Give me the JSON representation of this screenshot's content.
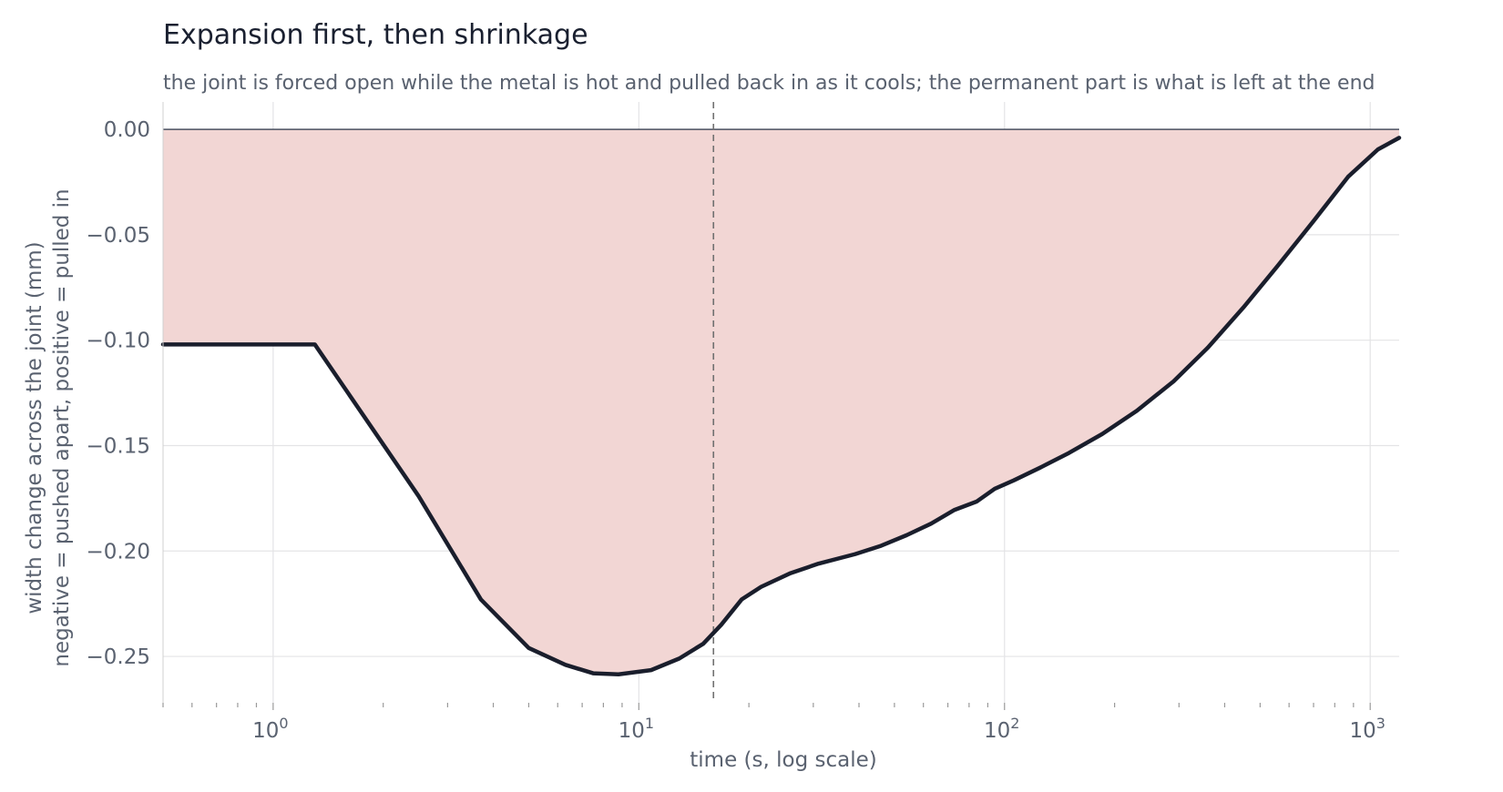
{
  "chart_data": {
    "type": "area",
    "title": "Expansion first, then shrinkage",
    "subtitle": "the joint is forced open while the metal is hot and pulled back in as it cools; the permanent part is what is left at the end",
    "xlabel": "time  (s, log scale)",
    "ylabel_lines": [
      "width change across the joint  (mm)",
      "negative = pushed apart, positive = pulled in"
    ],
    "x_scale": "log",
    "xlim": [
      0.5,
      1200
    ],
    "ylim": [
      -0.272,
      0.013
    ],
    "x_major_ticks": [
      {
        "value": 1,
        "base": "10",
        "exp": "0"
      },
      {
        "value": 10,
        "base": "10",
        "exp": "1"
      },
      {
        "value": 100,
        "base": "10",
        "exp": "2"
      },
      {
        "value": 1000,
        "base": "10",
        "exp": "3"
      }
    ],
    "y_ticks": [
      {
        "value": 0,
        "label": "0.00"
      },
      {
        "value": -0.05,
        "label": "−0.05"
      },
      {
        "value": -0.1,
        "label": "−0.10"
      },
      {
        "value": -0.15,
        "label": "−0.15"
      },
      {
        "value": -0.2,
        "label": "−0.20"
      },
      {
        "value": -0.25,
        "label": "−0.25"
      }
    ],
    "grid": true,
    "vertical_marker_x": 16,
    "series": [
      {
        "x": [
          0.5,
          1.3,
          2.5,
          3.7,
          5.0,
          6.3,
          7.5,
          8.8,
          10.8,
          12.9,
          15.0,
          16.8,
          19.1,
          21.6,
          26.0,
          31.0,
          39.0,
          46.0,
          54.0,
          63.0,
          73.0,
          84.0,
          94.0,
          106.0,
          125.0,
          150.0,
          185.0,
          230.0,
          290.0,
          360.0,
          450.0,
          560.0,
          700.0,
          870.0,
          1050.0,
          1200.0
        ],
        "y": [
          -0.102,
          -0.102,
          -0.174,
          -0.223,
          -0.246,
          -0.254,
          -0.258,
          -0.2585,
          -0.2565,
          -0.251,
          -0.244,
          -0.235,
          -0.223,
          -0.217,
          -0.2105,
          -0.206,
          -0.2015,
          -0.1975,
          -0.1925,
          -0.187,
          -0.1805,
          -0.1765,
          -0.1705,
          -0.1665,
          -0.1605,
          -0.1535,
          -0.1445,
          -0.1335,
          -0.1195,
          -0.1035,
          -0.0845,
          -0.0645,
          -0.0435,
          -0.0225,
          -0.0095,
          -0.004
        ],
        "color": "#1a1e2c",
        "fill_color": "#f2d6d4"
      }
    ]
  }
}
